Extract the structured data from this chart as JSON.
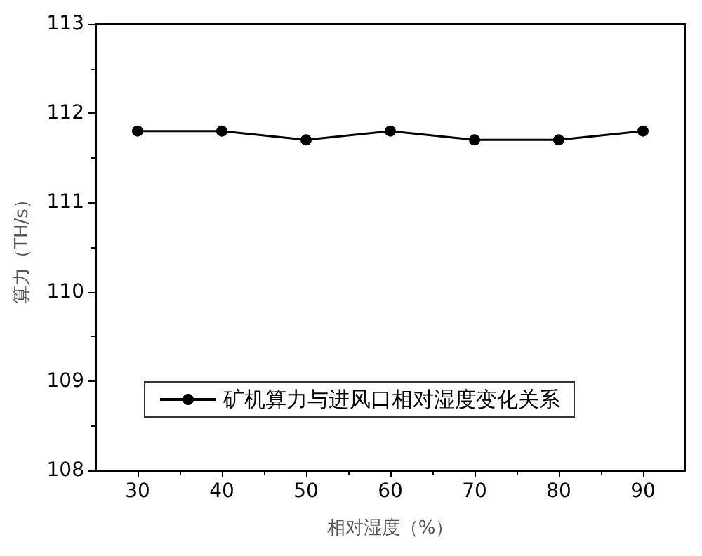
{
  "chart_data": {
    "type": "line",
    "xlabel": "相对湿度（%）",
    "ylabel": "算力（TH/s）",
    "x": [
      30,
      40,
      50,
      60,
      70,
      80,
      90
    ],
    "series": [
      {
        "name": "矿机算力与进风口相对湿度变化关系",
        "color": "#000000",
        "values": [
          111.8,
          111.8,
          111.7,
          111.8,
          111.7,
          111.7,
          111.8
        ]
      }
    ],
    "xlim": [
      25,
      95
    ],
    "xticks": [
      30,
      40,
      50,
      60,
      70,
      80,
      90
    ],
    "ylim": [
      108,
      113
    ],
    "yticks": [
      108,
      109,
      110,
      111,
      112,
      113
    ],
    "grid": false,
    "legend": "bottom",
    "marker": "circle",
    "line_style": "solid"
  }
}
